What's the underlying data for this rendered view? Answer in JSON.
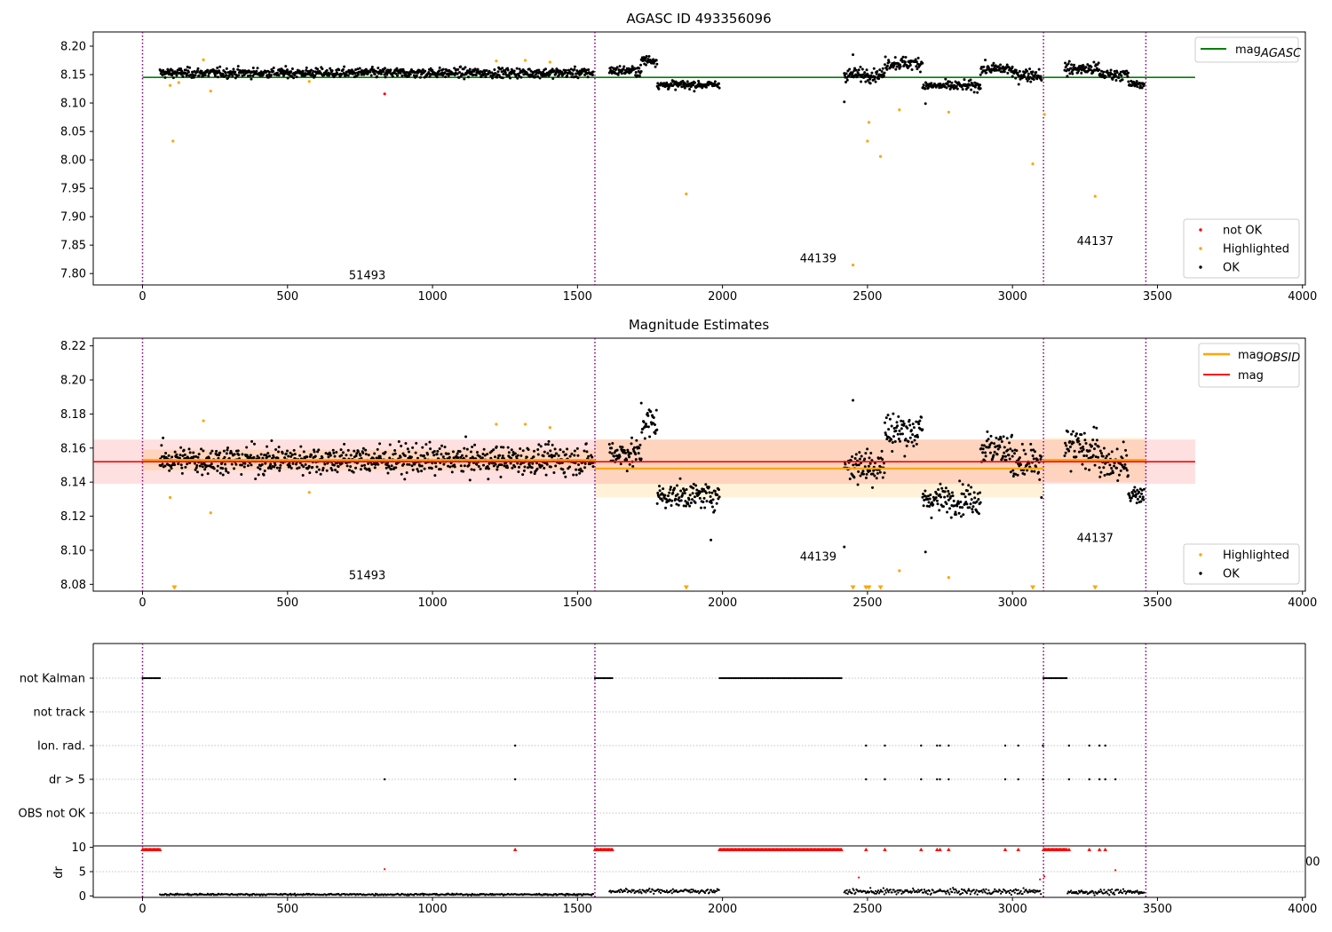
{
  "chart_data": [
    {
      "panel": "top",
      "type": "scatter",
      "title": "AGASC ID 493356096",
      "xlim": [
        -170,
        4010
      ],
      "ylim": [
        7.78,
        8.225
      ],
      "xticks": [
        0,
        500,
        1000,
        1500,
        2000,
        2500,
        3000,
        3500,
        4000
      ],
      "yticks": [
        7.8,
        7.85,
        7.9,
        7.95,
        8.0,
        8.05,
        8.1,
        8.15,
        8.2
      ],
      "ytick_labels": [
        "7.80",
        "7.85",
        "7.90",
        "7.95",
        "8.00",
        "8.05",
        "8.10",
        "8.15",
        "8.20"
      ],
      "obsid_boundaries": [
        0,
        1560,
        3107,
        3460
      ],
      "obsid_annotations": [
        {
          "label": "51493",
          "x": 775,
          "y": 7.79
        },
        {
          "label": "44139",
          "x": 2330,
          "y": 7.82
        },
        {
          "label": "44137",
          "x": 3285,
          "y": 7.85
        }
      ],
      "lines": [
        {
          "name": "mag",
          "subscript": "AGASC",
          "color": "#008000",
          "x": [
            0,
            3630
          ],
          "y": [
            8.145,
            8.145
          ]
        }
      ],
      "legend_lines_position": "upper-right",
      "legend_points_position": "lower-right",
      "legend_points": [
        {
          "name": "not OK",
          "color": "#ff0000"
        },
        {
          "name": "Highlighted",
          "color": "#ffa500"
        },
        {
          "name": "OK",
          "color": "#000000"
        }
      ],
      "segments_ok": [
        {
          "x0": 60,
          "x1": 1555,
          "mean": 8.153,
          "sd": 0.006
        },
        {
          "x0": 1610,
          "x1": 1720,
          "mean": 8.157,
          "sd": 0.006
        },
        {
          "x0": 1720,
          "x1": 1775,
          "mean": 8.175,
          "sd": 0.007
        },
        {
          "x0": 1775,
          "x1": 1990,
          "mean": 8.132,
          "sd": 0.005
        },
        {
          "x0": 2420,
          "x1": 2560,
          "mean": 8.15,
          "sd": 0.008
        },
        {
          "x0": 2560,
          "x1": 2690,
          "mean": 8.17,
          "sd": 0.008
        },
        {
          "x0": 2690,
          "x1": 2890,
          "mean": 8.13,
          "sd": 0.006
        },
        {
          "x0": 2890,
          "x1": 3000,
          "mean": 8.16,
          "sd": 0.007
        },
        {
          "x0": 3000,
          "x1": 3100,
          "mean": 8.15,
          "sd": 0.008
        },
        {
          "x0": 3180,
          "x1": 3300,
          "mean": 8.16,
          "sd": 0.008
        },
        {
          "x0": 3300,
          "x1": 3400,
          "mean": 8.15,
          "sd": 0.007
        },
        {
          "x0": 3400,
          "x1": 3455,
          "mean": 8.133,
          "sd": 0.004
        }
      ],
      "points_highlighted": [
        [
          95,
          8.131
        ],
        [
          105,
          8.033
        ],
        [
          125,
          8.136
        ],
        [
          210,
          8.176
        ],
        [
          235,
          8.121
        ],
        [
          575,
          8.138
        ],
        [
          1220,
          8.174
        ],
        [
          1320,
          8.175
        ],
        [
          1405,
          8.172
        ],
        [
          1875,
          7.94
        ],
        [
          2450,
          7.815
        ],
        [
          2500,
          8.033
        ],
        [
          2505,
          8.066
        ],
        [
          2545,
          8.006
        ],
        [
          2610,
          8.088
        ],
        [
          2780,
          8.084
        ],
        [
          3070,
          7.993
        ],
        [
          3110,
          8.08
        ],
        [
          3285,
          7.936
        ]
      ],
      "points_not_ok": [
        [
          835,
          8.116
        ]
      ],
      "points_ok_extra": [
        [
          2420,
          8.102
        ],
        [
          2450,
          8.185
        ],
        [
          2700,
          8.099
        ],
        [
          3100,
          8.14
        ]
      ]
    },
    {
      "panel": "middle",
      "type": "scatter",
      "title": "Magnitude Estimates",
      "xlim": [
        -170,
        4010
      ],
      "ylim": [
        8.076,
        8.2245
      ],
      "xticks": [
        0,
        500,
        1000,
        1500,
        2000,
        2500,
        3000,
        3500,
        4000
      ],
      "yticks": [
        8.08,
        8.1,
        8.12,
        8.14,
        8.16,
        8.18,
        8.2,
        8.22
      ],
      "ytick_labels": [
        "8.08",
        "8.10",
        "8.12",
        "8.14",
        "8.16",
        "8.18",
        "8.20",
        "8.22"
      ],
      "obsid_boundaries": [
        0,
        1560,
        3107,
        3460
      ],
      "obsid_annotations": [
        {
          "label": "51493",
          "x": 775,
          "y": 8.083
        },
        {
          "label": "44139",
          "x": 2330,
          "y": 8.094
        },
        {
          "label": "44137",
          "x": 3285,
          "y": 8.105
        }
      ],
      "lines": [
        {
          "name": "mag",
          "subscript": "OBSID",
          "color": "#ffa500",
          "segments": [
            [
              0,
              1560,
              8.153
            ],
            [
              1560,
              3107,
              8.148
            ],
            [
              3107,
              3460,
              8.153
            ]
          ]
        },
        {
          "name": "mag",
          "subscript": "",
          "color": "#ff0000",
          "x": [
            -170,
            3630
          ],
          "y": [
            8.152,
            8.152
          ]
        }
      ],
      "bands": [
        {
          "color": "#ffa500",
          "segments": [
            [
              0,
              1560,
              8.147,
              8.159
            ],
            [
              1560,
              3107,
              8.131,
              8.165
            ],
            [
              3107,
              3460,
              8.14,
              8.166
            ]
          ]
        },
        {
          "color": "#ff0000",
          "x0": -170,
          "x1": 3630,
          "y0": 8.139,
          "y1": 8.165
        }
      ],
      "legend_lines_position": "upper-right",
      "legend_points_position": "lower-right",
      "legend_points": [
        {
          "name": "Highlighted",
          "color": "#ffa500"
        },
        {
          "name": "OK",
          "color": "#000000"
        }
      ],
      "points_highlighted": [
        [
          95,
          8.131
        ],
        [
          210,
          8.176
        ],
        [
          235,
          8.122
        ],
        [
          575,
          8.134
        ],
        [
          1220,
          8.174
        ],
        [
          1320,
          8.174
        ],
        [
          1405,
          8.172
        ],
        [
          2610,
          8.088
        ],
        [
          2780,
          8.084
        ]
      ],
      "points_off_scale": [
        110,
        1875,
        2450,
        2495,
        2505,
        2545,
        3070,
        3285
      ],
      "points_ok_extra": [
        [
          2420,
          8.102
        ],
        [
          2450,
          8.188
        ],
        [
          2700,
          8.099
        ],
        [
          3100,
          8.131
        ],
        [
          1960,
          8.106
        ]
      ]
    },
    {
      "panel": "flags",
      "type": "scatter",
      "xlim": [
        -170,
        4010
      ],
      "categories": [
        "not Kalman",
        "not track",
        "Ion. rad.",
        "dr > 5",
        "OBS not OK"
      ],
      "obsid_boundaries": [
        0,
        1560,
        3107,
        3460
      ],
      "flag_runs": [
        {
          "category": "not Kalman",
          "x0": 0,
          "x1": 60
        },
        {
          "category": "not Kalman",
          "x0": 1560,
          "x1": 1620
        },
        {
          "category": "not Kalman",
          "x0": 1990,
          "x1": 2410
        },
        {
          "category": "not Kalman",
          "x0": 3107,
          "x1": 3190
        }
      ],
      "flag_points": [
        {
          "category": "Ion. rad.",
          "x": [
            1285,
            2495,
            2560,
            2685,
            2740,
            2750,
            2780,
            2975,
            3020,
            3105,
            3195,
            3265,
            3300,
            3320
          ]
        },
        {
          "category": "dr > 5",
          "x": [
            835,
            1285,
            2495,
            2560,
            2685,
            2740,
            2750,
            2780,
            2975,
            3020,
            3105,
            3195,
            3265,
            3300,
            3320,
            3355
          ]
        }
      ]
    },
    {
      "panel": "dr",
      "type": "scatter",
      "ylabel": "dr",
      "xlim": [
        -170,
        4010
      ],
      "ylim": [
        -0.3,
        10.3
      ],
      "xticks": [
        0,
        500,
        1000,
        1500,
        2000,
        2500,
        3000,
        3500,
        4000
      ],
      "yticks": [
        0,
        5,
        10
      ],
      "ytick_labels": [
        "0",
        "5",
        "10"
      ],
      "obsid_boundaries": [
        0,
        1560,
        3107,
        3460
      ],
      "overflow_runs": [
        [
          0,
          60
        ],
        [
          1560,
          1620
        ],
        [
          1990,
          2410
        ],
        [
          3107,
          3190
        ]
      ],
      "overflow_points": [
        1285,
        2495,
        2560,
        2685,
        2740,
        2750,
        2780,
        2975,
        3020,
        3195,
        3265,
        3300,
        3320
      ],
      "red_points": [
        [
          835,
          5.5
        ],
        [
          3355,
          5.3
        ],
        [
          2470,
          3.8
        ],
        [
          3095,
          3.4
        ],
        [
          3110,
          4.0
        ]
      ],
      "black_segments": [
        {
          "x0": 60,
          "x1": 1555,
          "mean": 0.3,
          "sd": 0.12
        },
        {
          "x0": 1610,
          "x1": 1990,
          "mean": 1.0,
          "sd": 0.3
        },
        {
          "x0": 2420,
          "x1": 3100,
          "mean": 0.9,
          "sd": 0.4
        },
        {
          "x0": 3190,
          "x1": 3455,
          "mean": 0.8,
          "sd": 0.35
        }
      ],
      "clipped_tick_fragment": "00"
    }
  ]
}
